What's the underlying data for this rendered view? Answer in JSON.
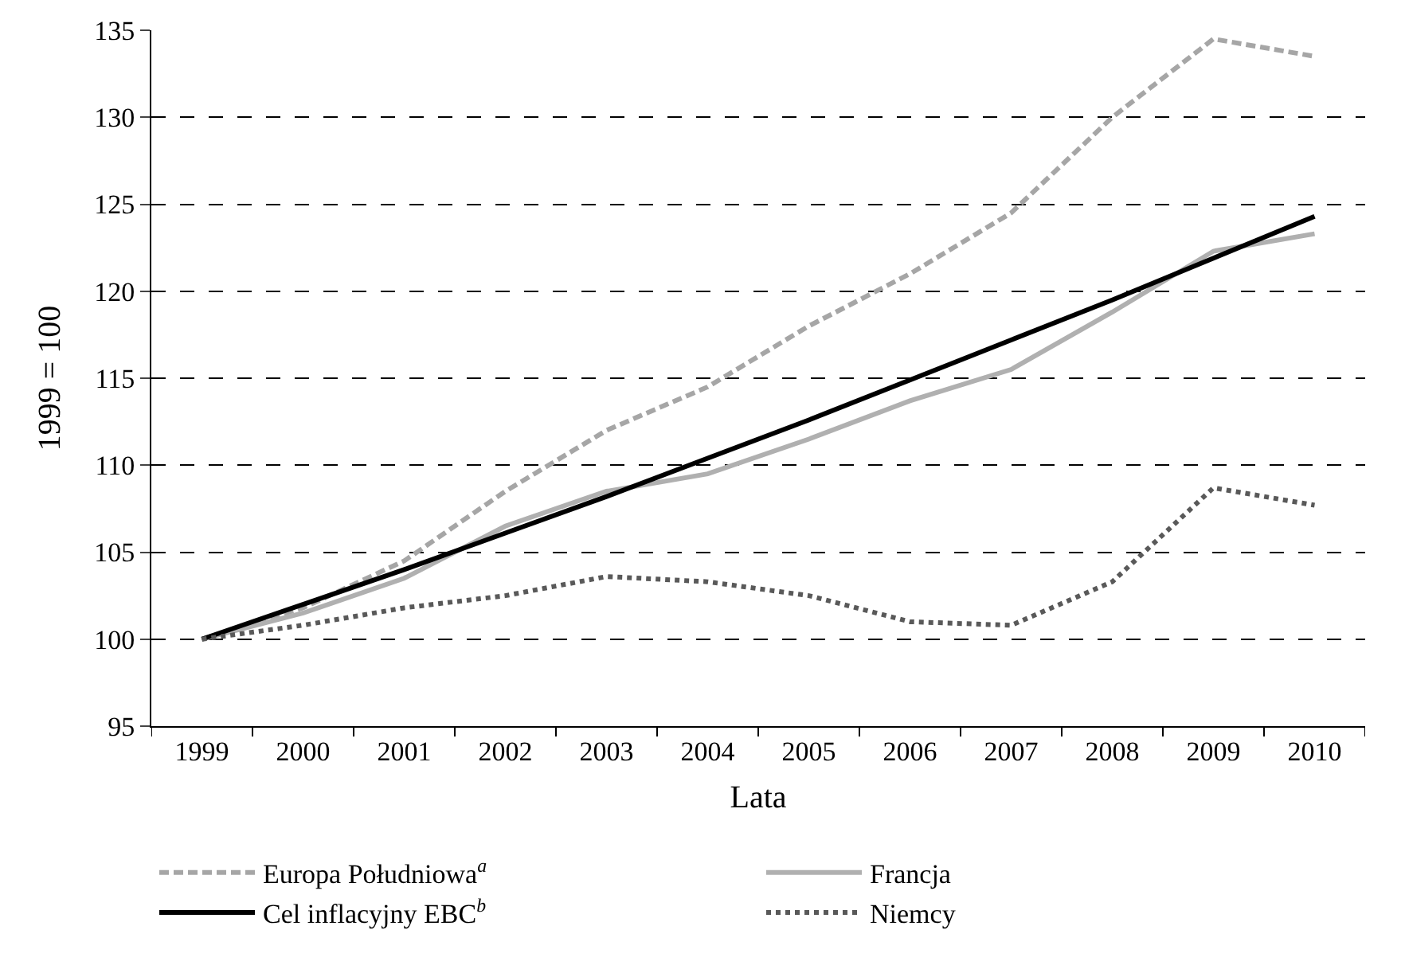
{
  "chart_data": {
    "type": "line",
    "xlabel": "Lata",
    "ylabel": "1999 = 100",
    "categories": [
      "1999",
      "2000",
      "2001",
      "2002",
      "2003",
      "2004",
      "2005",
      "2006",
      "2007",
      "2008",
      "2009",
      "2010"
    ],
    "series": [
      {
        "name": "Europa Południowa$^{a}$",
        "color": "#a6a6a6",
        "line_style": "dashed",
        "values": [
          100,
          101.8,
          104.5,
          108.5,
          112,
          114.5,
          118,
          121,
          124.5,
          130,
          134.5,
          133.5
        ]
      },
      {
        "name": "Francja",
        "color": "#b0b0b0",
        "line_style": "solid",
        "values": [
          100,
          101.5,
          103.5,
          106.5,
          108.5,
          109.5,
          111.5,
          113.7,
          115.5,
          118.8,
          122.3,
          123.3
        ]
      },
      {
        "name": "Cel inflacyjny EBC$^{b}$",
        "color": "#000000",
        "line_style": "solid",
        "values": [
          100,
          102,
          104,
          106.1,
          108.2,
          110.4,
          112.6,
          114.9,
          117.2,
          119.5,
          121.9,
          124.3
        ]
      },
      {
        "name": "Niemcy",
        "color": "#595959",
        "line_style": "dotted",
        "values": [
          100,
          100.8,
          101.8,
          102.5,
          103.6,
          103.3,
          102.5,
          101,
          100.8,
          103.3,
          108.7,
          107.7
        ]
      }
    ],
    "ylim": [
      95,
      135
    ],
    "yticks": [
      95,
      100,
      105,
      110,
      115,
      120,
      125,
      130,
      135
    ],
    "grid": "y",
    "legend": "bottom",
    "marker": "none"
  }
}
